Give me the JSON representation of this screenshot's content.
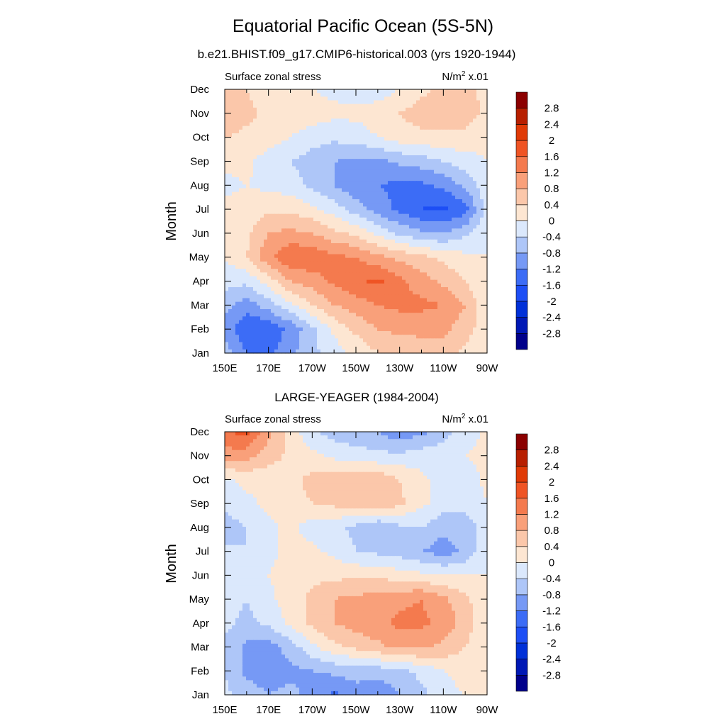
{
  "figure": {
    "title": "Equatorial Pacific Ocean (5S-5N)"
  },
  "colorbar": {
    "levels": [
      -2.8,
      -2.4,
      -2.0,
      -1.6,
      -1.2,
      -0.8,
      -0.4,
      0,
      0.4,
      0.8,
      1.2,
      1.6,
      2.0,
      2.4,
      2.8
    ],
    "labels": [
      "2.8",
      "2.4",
      "2",
      "1.6",
      "1.2",
      "0.8",
      "0.4",
      "0",
      "-0.4",
      "-0.8",
      "-1.2",
      "-1.6",
      "-2",
      "-2.4",
      "-2.8"
    ],
    "colors": [
      "#00008b",
      "#0018b5",
      "#0030d8",
      "#1d4ef5",
      "#3c6cf6",
      "#7699f5",
      "#aec6f8",
      "#dbe8fc",
      "#fde6d2",
      "#fbc7aa",
      "#f9a07a",
      "#f47a4e",
      "#ef5424",
      "#e03a06",
      "#b71f00",
      "#8b0000"
    ]
  },
  "chart_data": [
    {
      "type": "heatmap",
      "title": "b.e21.BHIST.f09_g17.CMIP6-historical.003 (yrs 1920-1944)",
      "left_label": "Surface zonal stress",
      "right_label_base": "N/m",
      "right_label_sup": "2",
      "right_label_tail": " x.01",
      "ylabel": "Month",
      "x_tick_labels": [
        "150E",
        "170E",
        "170W",
        "150W",
        "130W",
        "110W",
        "90W"
      ],
      "y_tick_labels": [
        "Jan",
        "Feb",
        "Mar",
        "Apr",
        "May",
        "Jun",
        "Jul",
        "Aug",
        "Sep",
        "Oct",
        "Nov",
        "Dec"
      ],
      "x": [
        150,
        160,
        170,
        180,
        190,
        200,
        210,
        220,
        230,
        240,
        250,
        260,
        270
      ],
      "y": [
        1,
        2,
        3,
        4,
        5,
        6,
        7,
        8,
        9,
        10,
        11,
        12
      ],
      "xlim": [
        150,
        270
      ],
      "ylim": [
        1,
        12
      ],
      "z": [
        [
          -0.6,
          -1.2,
          -1.3,
          -0.9,
          -0.5,
          -0.2,
          0.1,
          0.4,
          0.5,
          0.6,
          0.6,
          0.3,
          0.0
        ],
        [
          -0.9,
          -1.6,
          -1.5,
          -1.1,
          -0.5,
          0.1,
          0.5,
          0.8,
          0.9,
          0.9,
          0.9,
          0.6,
          0.1
        ],
        [
          -0.7,
          -1.0,
          -0.6,
          -0.1,
          0.4,
          0.8,
          1.0,
          1.2,
          1.3,
          1.3,
          1.2,
          0.8,
          0.1
        ],
        [
          -0.2,
          -0.3,
          0.2,
          0.8,
          1.0,
          1.3,
          1.5,
          1.7,
          1.3,
          1.0,
          0.7,
          0.4,
          0.0
        ],
        [
          0.0,
          0.4,
          1.1,
          1.6,
          1.5,
          1.3,
          1.2,
          0.9,
          0.7,
          0.5,
          0.3,
          0.1,
          0.0
        ],
        [
          0.0,
          0.3,
          0.8,
          0.9,
          0.8,
          0.5,
          0.3,
          -0.1,
          -0.5,
          -0.7,
          -0.8,
          -0.5,
          -0.1
        ],
        [
          0.1,
          0.2,
          0.3,
          0.3,
          0.1,
          -0.2,
          -0.6,
          -1.0,
          -1.3,
          -1.6,
          -1.7,
          -1.4,
          -0.2
        ],
        [
          -0.1,
          0.0,
          -0.1,
          -0.2,
          -0.5,
          -0.8,
          -1.1,
          -1.2,
          -1.3,
          -1.3,
          -1.1,
          -0.7,
          -0.1
        ],
        [
          0.1,
          0.1,
          -0.2,
          -0.4,
          -0.6,
          -0.8,
          -0.9,
          -0.9,
          -0.7,
          -0.6,
          -0.4,
          -0.2,
          0.0
        ],
        [
          0.4,
          0.3,
          0.2,
          0.0,
          -0.2,
          -0.3,
          -0.2,
          0.0,
          0.2,
          0.3,
          0.3,
          0.3,
          0.1
        ],
        [
          0.7,
          0.5,
          0.3,
          0.3,
          0.2,
          0.1,
          0.1,
          0.2,
          0.4,
          0.6,
          0.7,
          0.6,
          0.3
        ],
        [
          0.5,
          0.4,
          0.2,
          0.1,
          0.0,
          -0.1,
          -0.2,
          -0.2,
          0.0,
          0.3,
          0.5,
          0.5,
          0.3
        ]
      ]
    },
    {
      "type": "heatmap",
      "title": "LARGE-YEAGER (1984-2004)",
      "left_label": "Surface zonal stress",
      "right_label_base": "N/m",
      "right_label_sup": "2",
      "right_label_tail": " x.01",
      "ylabel": "Month",
      "x_tick_labels": [
        "150E",
        "170E",
        "170W",
        "150W",
        "130W",
        "110W",
        "90W"
      ],
      "y_tick_labels": [
        "Jan",
        "Feb",
        "Mar",
        "Apr",
        "May",
        "Jun",
        "Jul",
        "Aug",
        "Sep",
        "Oct",
        "Nov",
        "Dec"
      ],
      "x": [
        150,
        160,
        170,
        180,
        190,
        200,
        210,
        220,
        230,
        240,
        250,
        260,
        270
      ],
      "y": [
        1,
        2,
        3,
        4,
        5,
        6,
        7,
        8,
        9,
        10,
        11,
        12
      ],
      "xlim": [
        150,
        270
      ],
      "ylim": [
        1,
        12
      ],
      "z": [
        [
          -0.3,
          -0.6,
          -0.8,
          -0.7,
          -0.9,
          -1.3,
          -1.0,
          -1.2,
          -0.8,
          -0.5,
          -0.2,
          0.0,
          0.1
        ],
        [
          -0.4,
          -0.9,
          -1.0,
          -0.9,
          -0.8,
          -0.7,
          -0.6,
          -0.6,
          -0.5,
          -0.3,
          0.0,
          0.2,
          0.2
        ],
        [
          -0.5,
          -0.9,
          -1.0,
          -0.6,
          -0.1,
          0.3,
          0.5,
          0.7,
          0.9,
          0.9,
          0.7,
          0.4,
          0.1
        ],
        [
          -0.3,
          -0.5,
          -0.3,
          0.1,
          0.5,
          0.8,
          1.0,
          1.1,
          1.3,
          1.3,
          1.1,
          0.6,
          0.1
        ],
        [
          -0.2,
          -0.4,
          -0.1,
          0.2,
          0.5,
          0.8,
          0.9,
          1.0,
          1.1,
          1.2,
          0.9,
          0.5,
          0.1
        ],
        [
          -0.2,
          -0.3,
          0.0,
          0.2,
          0.3,
          0.3,
          0.3,
          0.3,
          0.2,
          0.1,
          0.0,
          0.0,
          0.0
        ],
        [
          -0.3,
          -0.4,
          -0.1,
          0.1,
          0.1,
          -0.1,
          -0.4,
          -0.5,
          -0.6,
          -0.8,
          -1.0,
          -0.7,
          -0.1
        ],
        [
          -0.6,
          -0.4,
          -0.1,
          0.1,
          -0.2,
          -0.3,
          -0.5,
          -0.8,
          -0.5,
          -0.4,
          -0.7,
          -0.6,
          -0.2
        ],
        [
          -0.3,
          -0.1,
          0.1,
          0.3,
          0.4,
          0.5,
          0.6,
          0.7,
          0.5,
          0.1,
          -0.2,
          -0.3,
          0.0
        ],
        [
          -0.1,
          0.1,
          0.1,
          0.3,
          0.5,
          0.6,
          0.6,
          0.7,
          0.4,
          0.1,
          -0.2,
          -0.2,
          0.1
        ],
        [
          1.0,
          1.0,
          0.6,
          0.3,
          0.1,
          -0.1,
          -0.2,
          -0.3,
          -0.3,
          -0.2,
          -0.1,
          0.0,
          0.1
        ],
        [
          1.6,
          1.7,
          0.9,
          0.2,
          -0.3,
          -0.6,
          -0.7,
          -0.8,
          -1.1,
          -0.9,
          -0.6,
          -0.2,
          0.1
        ]
      ]
    }
  ]
}
